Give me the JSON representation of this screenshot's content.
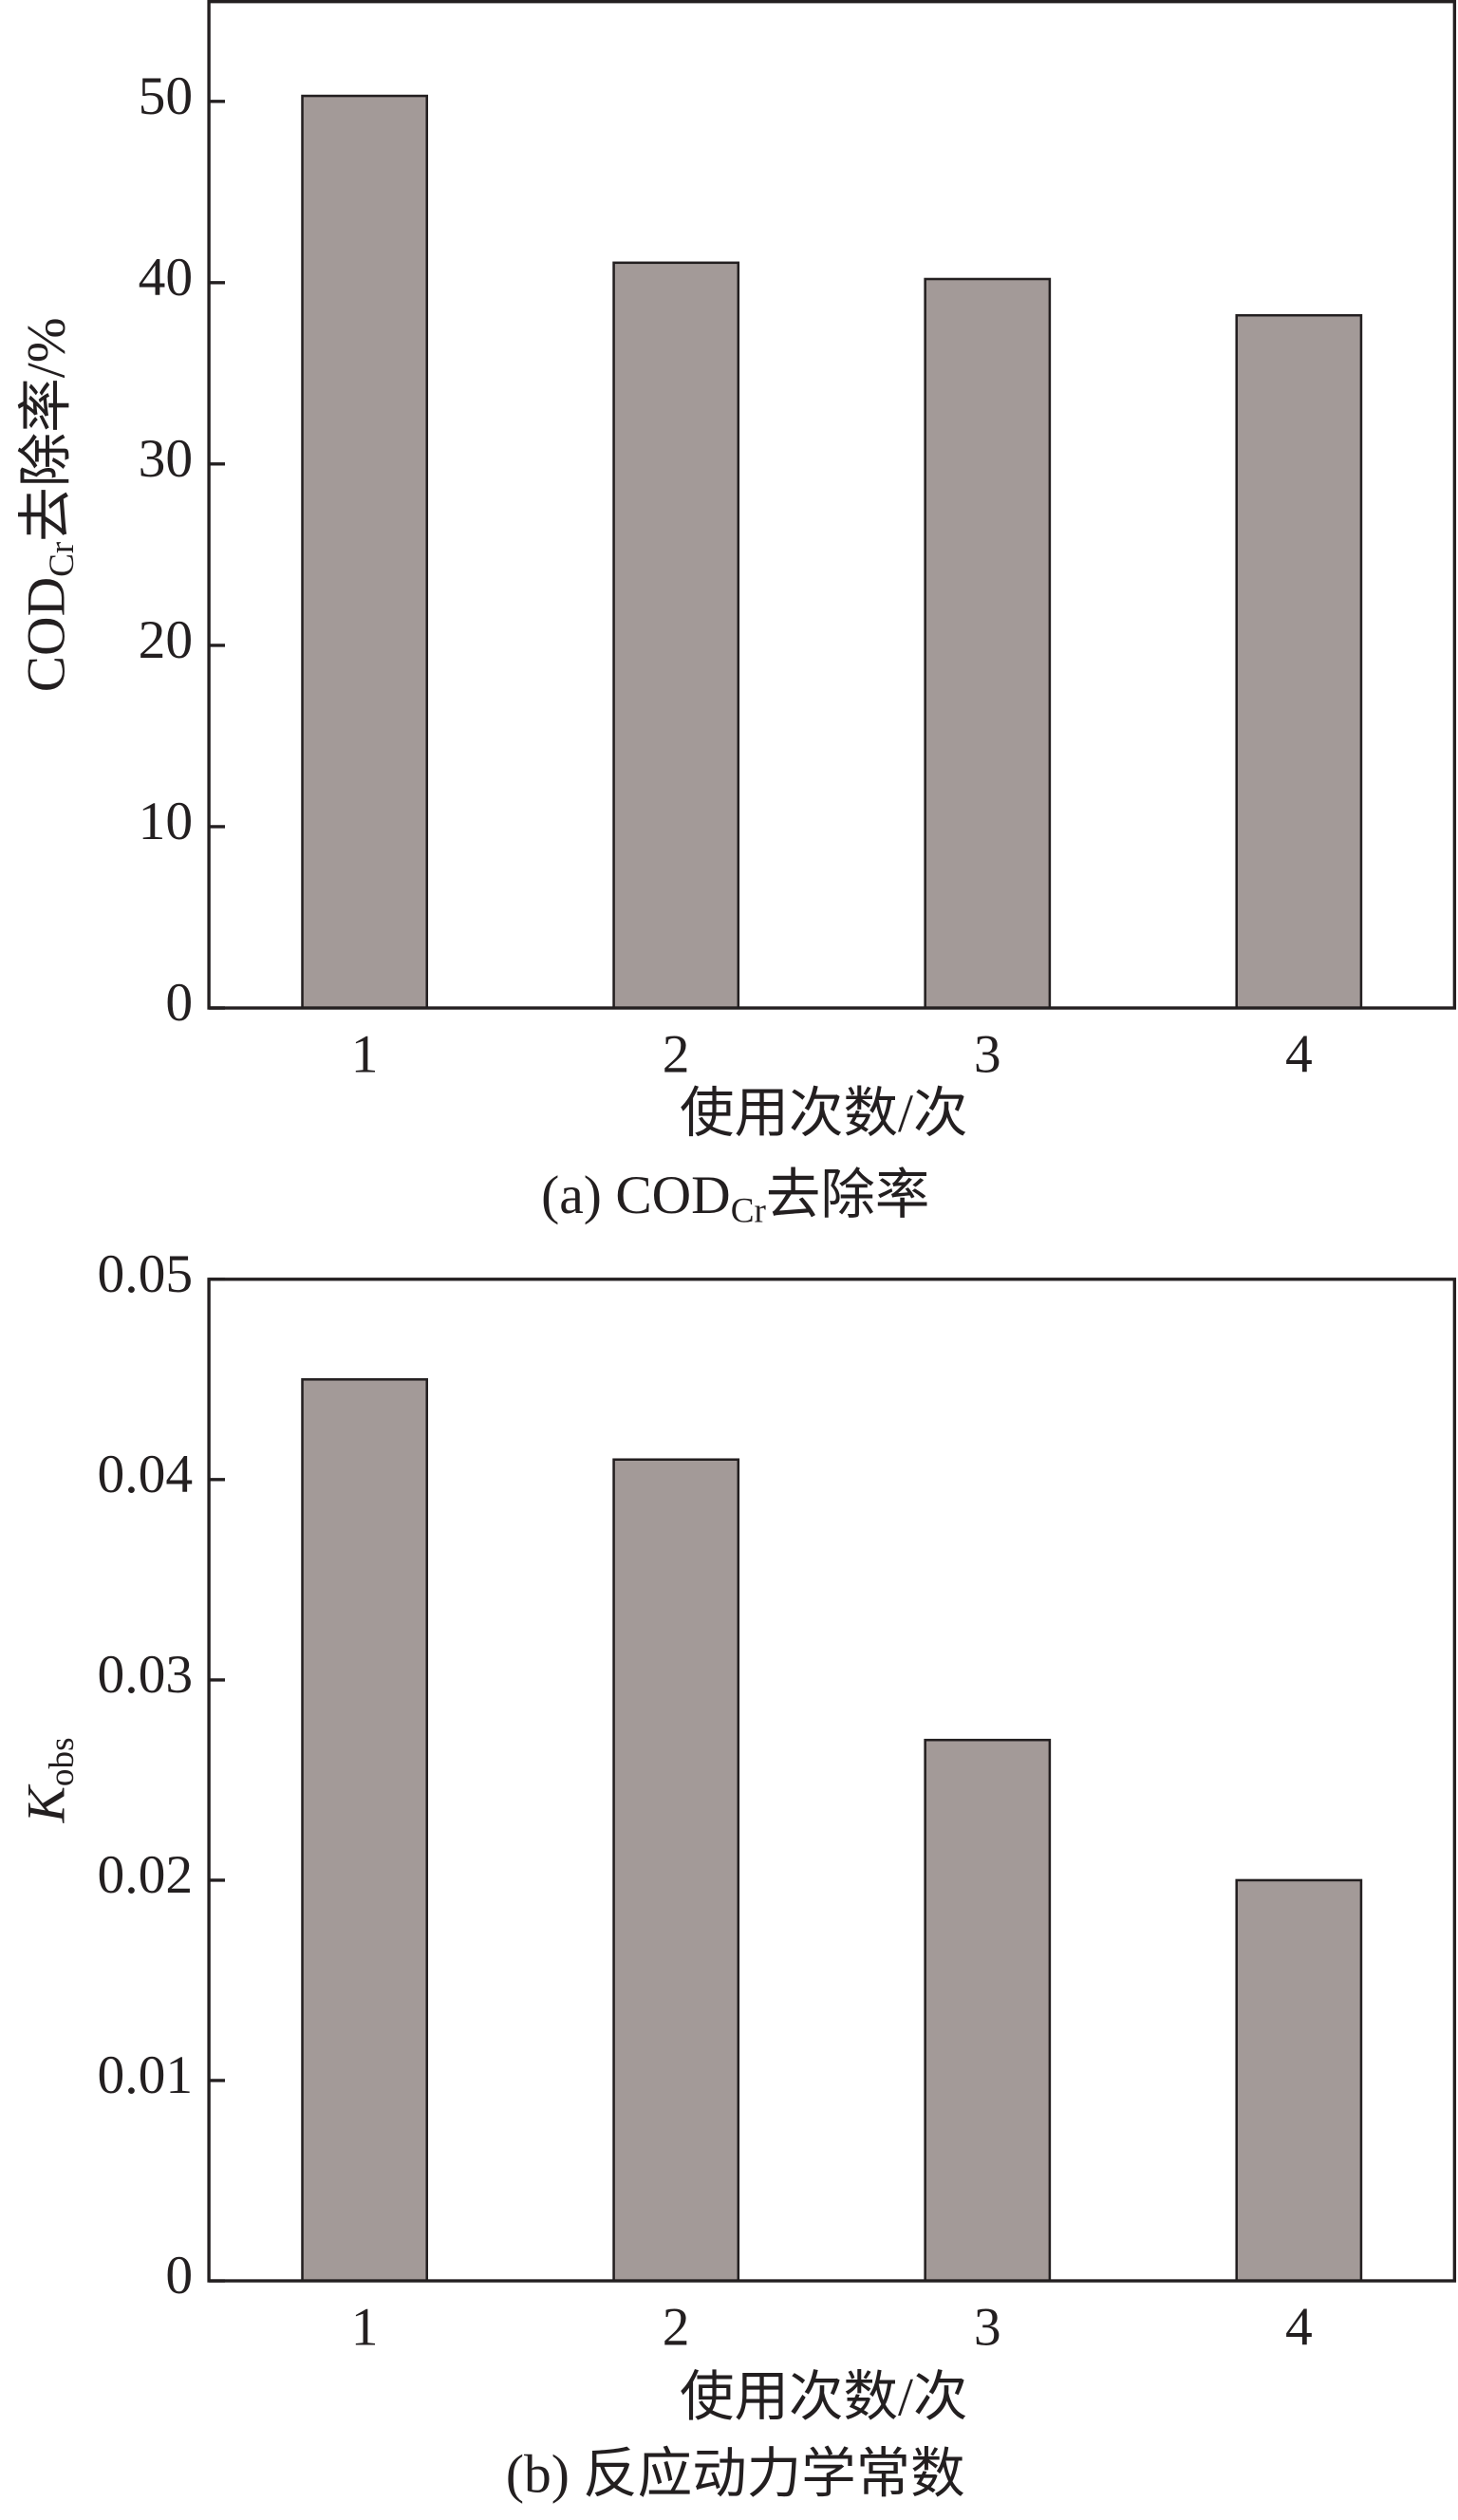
{
  "chart_data": [
    {
      "type": "bar",
      "ylabel": [
        "COD",
        "Cr",
        "去除率/%"
      ],
      "xlabel": "使用次数/次",
      "caption": [
        "(a) COD",
        "Cr",
        "去除率"
      ],
      "categories": [
        "1",
        "2",
        "3",
        "4"
      ],
      "values": [
        50.3,
        41.1,
        40.2,
        38.2
      ],
      "color": "#a39a98",
      "ylim": [
        0,
        55.5
      ],
      "yticks": [
        0,
        10,
        20,
        30,
        40,
        50
      ],
      "grid": false
    },
    {
      "type": "bar",
      "ylabel": [
        "K",
        "obs"
      ],
      "xlabel": "使用次数/次",
      "caption": [
        "(b) 反应动力学常数"
      ],
      "categories": [
        "1",
        "2",
        "3",
        "4"
      ],
      "values": [
        0.045,
        0.041,
        0.027,
        0.02
      ],
      "color": "#a39a98",
      "ylim": [
        0,
        0.05
      ],
      "yticks": [
        0,
        0.01,
        0.02,
        0.03,
        0.04,
        0.05
      ],
      "grid": false
    }
  ]
}
